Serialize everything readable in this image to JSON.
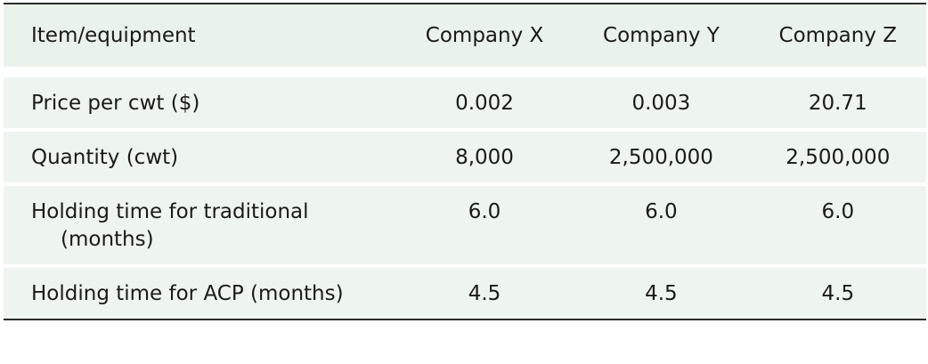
{
  "table": {
    "header": [
      "Item/equipment",
      "Company X",
      "Company Y",
      "Company Z"
    ],
    "rows": [
      [
        "Price per cwt ($)",
        "0.002",
        "0.003",
        "20.71"
      ],
      [
        "Quantity (cwt)",
        "8,000",
        "2,500,000",
        "2,500,000"
      ],
      [
        "Holding time for traditional (months)",
        "6.0",
        "6.0",
        "6.0"
      ],
      [
        "Holding time for ACP (months)",
        "4.5",
        "4.5",
        "4.5"
      ]
    ]
  }
}
